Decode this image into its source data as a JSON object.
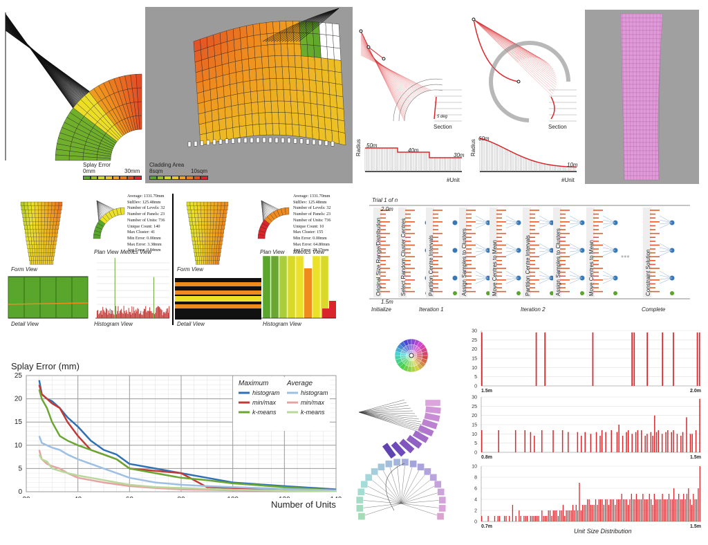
{
  "top": {
    "splay_error_label": "Splay Error",
    "splay_min": "0mm",
    "splay_max": "30mm",
    "cladding_label": "Cladding Area",
    "cladding_min": "8sqm",
    "cladding_max": "10sqm",
    "section_label": "Section",
    "section_label_2": "Section",
    "deg_label": "5 deg",
    "radius_label": "Radius",
    "unit_label": "#Unit",
    "radius_steps": [
      "50m",
      "40m",
      "30m"
    ],
    "radius_curve_top": "60m",
    "radius_curve_end": "10m",
    "colors": {
      "red": "#d9262b",
      "green": "#5aa62c",
      "yellow": "#ece12a",
      "orange": "#ef8b1e",
      "pink": "#e19ad8"
    }
  },
  "middle": {
    "form_view": "Form View",
    "plan_view": "Plan View",
    "metrics_view": "Metrics View",
    "detail_view": "Detail View",
    "histogram_view": "Histogram View",
    "metrics_left": [
      "Average: 1331.70mm",
      "StdDev: 125.48mm",
      "Number of Levels: 32",
      "Number of Panels: 23",
      "Number of Units: 736",
      "Unique Count: 140",
      "Max Cluster: 41",
      "Min Error: 0.00mm",
      "Max Error: 3.38mm",
      "Avg Error: 0.84mm"
    ],
    "metrics_right": [
      "Average: 1331.70mm",
      "StdDev: 125.48mm",
      "Number of Levels: 32",
      "Number of Panels: 23",
      "Number of Units: 736",
      "Unique Count: 10",
      "Max Cluster: 155",
      "Min Error: 0.00mm",
      "Max Error: 64.80mm",
      "Avg Error: 28.37mm"
    ]
  },
  "kmeans": {
    "trial": "Trial 1 of n",
    "top_value": "2.0m",
    "bottom_value": "1.5m",
    "steps": [
      "Original Size Range/Distribution",
      "Select Random Cluster Centres",
      "Partition Centre Intervals",
      "Assign Samples to Clusters",
      "Move Centres to Mean",
      "Partition Centre Intervals",
      "Assign Samples to Clusters",
      "Move Centres to Mean",
      "Constraint Solution"
    ],
    "phases": [
      "Initialize",
      "Iteration 1",
      "Iteration 2",
      "Complete"
    ],
    "ellipsis": "•••"
  },
  "line_chart_title": "Splay Error (mm)",
  "line_chart_xlabel": "Number of Units",
  "legend_headers": [
    "Maximum",
    "Average"
  ],
  "distribution_title": "Unit Size Distribution",
  "chart_data": [
    {
      "type": "line",
      "title": "Splay Error (mm)",
      "xlabel": "Number of Units",
      "ylabel": "",
      "xlim": [
        20,
        140
      ],
      "ylim": [
        0,
        25
      ],
      "xticks": [
        20,
        40,
        60,
        80,
        100,
        120,
        140
      ],
      "yticks": [
        0,
        5,
        10,
        15,
        20,
        25
      ],
      "grid": true,
      "legend": "top-right",
      "series": [
        {
          "name": "histogram",
          "group": "Maximum",
          "color": "#2f6fb3",
          "x": [
            25,
            26,
            28,
            30,
            33,
            36,
            40,
            45,
            50,
            55,
            60,
            70,
            80,
            90,
            100,
            120,
            140
          ],
          "y": [
            24,
            21,
            20,
            19.5,
            18,
            16,
            14,
            11,
            9,
            8,
            6,
            5,
            4,
            3,
            2,
            1.2,
            0.5
          ]
        },
        {
          "name": "min/max",
          "group": "Maximum",
          "color": "#c23a36",
          "x": [
            25,
            26,
            28,
            30,
            33,
            36,
            40,
            45,
            50,
            55,
            60,
            70,
            80,
            90,
            100,
            120,
            140
          ],
          "y": [
            23,
            21,
            20,
            19,
            18,
            15,
            12,
            9,
            8,
            7,
            5,
            4.5,
            4,
            1,
            0.8,
            0.6,
            0.4
          ]
        },
        {
          "name": "k-means",
          "group": "Maximum",
          "color": "#6aa632",
          "x": [
            25,
            26,
            28,
            30,
            33,
            36,
            40,
            45,
            50,
            55,
            60,
            70,
            80,
            90,
            100,
            120,
            140
          ],
          "y": [
            22,
            20,
            18,
            15,
            12,
            11,
            10,
            9,
            8,
            7,
            5,
            4,
            3,
            2.5,
            1.8,
            1,
            0.3
          ]
        },
        {
          "name": "histogram",
          "group": "Average",
          "color": "#9dbfe3",
          "x": [
            25,
            26,
            28,
            30,
            33,
            36,
            40,
            45,
            50,
            55,
            60,
            70,
            80,
            90,
            100,
            120,
            140
          ],
          "y": [
            12,
            10.5,
            10,
            9.5,
            9,
            8,
            7,
            6,
            5,
            4,
            3,
            2,
            1.5,
            1.2,
            1,
            0.6,
            0.3
          ]
        },
        {
          "name": "min/max",
          "group": "Average",
          "color": "#e6a3a3",
          "x": [
            25,
            26,
            28,
            30,
            33,
            36,
            40,
            45,
            50,
            55,
            60,
            70,
            80,
            90,
            100,
            120,
            140
          ],
          "y": [
            9,
            7,
            6,
            5.5,
            5,
            4,
            3,
            2.5,
            2,
            1.6,
            1.2,
            0.8,
            0.5,
            0.4,
            0.3,
            0.2,
            0.1
          ]
        },
        {
          "name": "k-means",
          "group": "Average",
          "color": "#b8d79a",
          "x": [
            25,
            26,
            28,
            30,
            33,
            36,
            40,
            45,
            50,
            55,
            60,
            70,
            80,
            90,
            100,
            120,
            140
          ],
          "y": [
            8,
            7,
            6.5,
            5,
            4.5,
            4,
            3.5,
            3,
            2.5,
            2,
            1.5,
            1,
            0.8,
            0.6,
            0.4,
            0.2,
            0.1
          ]
        }
      ]
    },
    {
      "type": "bar",
      "title": "",
      "xlabel": "",
      "ylim": [
        0,
        30
      ],
      "yticks": [
        0,
        5,
        10,
        15,
        20,
        25,
        30
      ],
      "x_range_labels": [
        "1.5m",
        "2.0m"
      ],
      "values": [
        29,
        0,
        0,
        0,
        0,
        0,
        0,
        0,
        0,
        0,
        0,
        0,
        0,
        0,
        0,
        0,
        0,
        0,
        0,
        0,
        0,
        0,
        0,
        0,
        0,
        29,
        0,
        0,
        0,
        29,
        0,
        0,
        0,
        0,
        0,
        0,
        0,
        0,
        0,
        0,
        0,
        0,
        0,
        0,
        0,
        0,
        0,
        0,
        0,
        0,
        0,
        29,
        0,
        0,
        0,
        0,
        0,
        0,
        0,
        0,
        0,
        0,
        0,
        0,
        0,
        0,
        0,
        0,
        0,
        29,
        29,
        0,
        0,
        0,
        0,
        0,
        29,
        0,
        0,
        0,
        0,
        0,
        0,
        29,
        0,
        0,
        0,
        0,
        29,
        0,
        0,
        0,
        0,
        0,
        0,
        0,
        0,
        0,
        0,
        29,
        29
      ]
    },
    {
      "type": "bar",
      "title": "",
      "xlabel": "",
      "ylim": [
        0,
        30
      ],
      "yticks": [
        0,
        5,
        10,
        15,
        20,
        25,
        30
      ],
      "x_range_labels": [
        "0.8m",
        "1.5m"
      ],
      "values": [
        12,
        0,
        0,
        0,
        0,
        0,
        0,
        0,
        0,
        12,
        0,
        0,
        0,
        0,
        0,
        0,
        0,
        0,
        12,
        0,
        0,
        0,
        0,
        12,
        0,
        0,
        11,
        0,
        9,
        0,
        0,
        0,
        12,
        0,
        0,
        0,
        0,
        0,
        12,
        0,
        0,
        0,
        0,
        12,
        0,
        0,
        11,
        0,
        0,
        0,
        0,
        11,
        0,
        9,
        0,
        11,
        0,
        0,
        10,
        0,
        0,
        11,
        0,
        9,
        12,
        0,
        11,
        0,
        0,
        12,
        0,
        0,
        11,
        15,
        0,
        9,
        0,
        11,
        12,
        0,
        10,
        0,
        11,
        12,
        0,
        12,
        0,
        9,
        10,
        0,
        11,
        9,
        20,
        11,
        12,
        0,
        10,
        0,
        11,
        12,
        0,
        11,
        12,
        0,
        10,
        0,
        9,
        11,
        0,
        19,
        0,
        10,
        10,
        0,
        12,
        0,
        29
      ]
    },
    {
      "type": "bar",
      "title": "Unit Size Distribution",
      "xlabel": "Unit Size Distribution",
      "ylim": [
        0,
        10
      ],
      "yticks": [
        0,
        2,
        4,
        6,
        8,
        10
      ],
      "x_range_labels": [
        "0.7m",
        "1.5m"
      ],
      "values": [
        1,
        0,
        0,
        0,
        1,
        0,
        0,
        0,
        1,
        0,
        1,
        1,
        0,
        0,
        1,
        1,
        0,
        1,
        0,
        3,
        0,
        1,
        0,
        2,
        1,
        0,
        1,
        1,
        1,
        0,
        1,
        1,
        1,
        1,
        1,
        1,
        0,
        2,
        1,
        1,
        1,
        2,
        2,
        1,
        2,
        2,
        2,
        1,
        2,
        2,
        3,
        1,
        2,
        2,
        2,
        2,
        3,
        2,
        3,
        2,
        7,
        2,
        3,
        3,
        3,
        4,
        4,
        3,
        3,
        3,
        4,
        3,
        4,
        4,
        4,
        3,
        4,
        4,
        3,
        4,
        4,
        4,
        3,
        4,
        4,
        4,
        5,
        4,
        4,
        4,
        3,
        4,
        5,
        4,
        4,
        5,
        4,
        4,
        4,
        5,
        4,
        4,
        4,
        5,
        4,
        3,
        5,
        4,
        4,
        4,
        4,
        5,
        4,
        4,
        4,
        5,
        4,
        4,
        6,
        4,
        4,
        5,
        4,
        4,
        5,
        4,
        5,
        6,
        4,
        3,
        5,
        4,
        4,
        6,
        10
      ]
    }
  ]
}
